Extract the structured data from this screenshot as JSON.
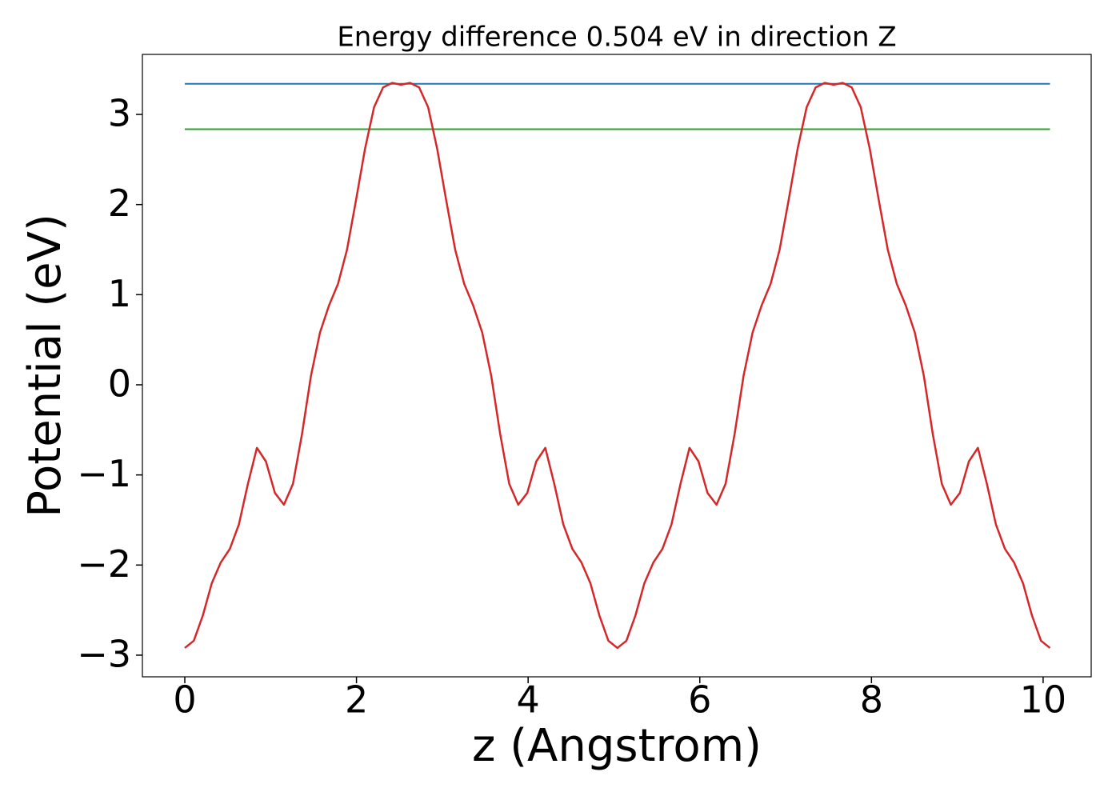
{
  "chart_data": {
    "type": "line",
    "title": "Energy difference 0.504 eV in direction Z",
    "xlabel": "z (Angstrom)",
    "ylabel": "Potential (eV)",
    "xlim": [
      -0.494,
      10.56
    ],
    "ylim": [
      -3.24,
      3.666
    ],
    "xticks": [
      0,
      2,
      4,
      6,
      8,
      10
    ],
    "yticks": [
      {
        "value": -3,
        "label": "−3"
      },
      {
        "value": -2,
        "label": "−2"
      },
      {
        "value": -1,
        "label": "−1"
      },
      0,
      1,
      2,
      3
    ],
    "series": [
      {
        "color": "#1f77b4",
        "x": [
          0,
          10.08
        ],
        "values": [
          3.34,
          3.34
        ]
      },
      {
        "color": "#2ca02c",
        "x": [
          0,
          10.08
        ],
        "values": [
          2.836,
          2.836
        ]
      },
      {
        "color": "#d62728",
        "x": [
          0,
          0.105,
          0.21,
          0.315,
          0.42,
          0.525,
          0.63,
          0.735,
          0.84,
          0.945,
          1.05,
          1.155,
          1.26,
          1.365,
          1.47,
          1.575,
          1.68,
          1.785,
          1.89,
          1.995,
          2.1,
          2.205,
          2.31,
          2.415,
          2.52,
          2.625,
          2.73,
          2.835,
          2.94,
          3.045,
          3.15,
          3.255,
          3.36,
          3.465,
          3.57,
          3.675,
          3.78,
          3.885,
          3.99,
          4.095,
          4.2,
          4.305,
          4.41,
          4.515,
          4.62,
          4.725,
          4.83,
          4.935,
          5.04,
          5.145,
          5.25,
          5.355,
          5.46,
          5.565,
          5.67,
          5.775,
          5.88,
          5.985,
          6.09,
          6.195,
          6.3,
          6.405,
          6.51,
          6.615,
          6.72,
          6.825,
          6.93,
          7.035,
          7.14,
          7.245,
          7.35,
          7.455,
          7.56,
          7.665,
          7.77,
          7.875,
          7.98,
          8.085,
          8.19,
          8.295,
          8.4,
          8.505,
          8.61,
          8.715,
          8.82,
          8.925,
          9.03,
          9.135,
          9.24,
          9.345,
          9.45,
          9.555,
          9.66,
          9.765,
          9.87,
          9.975,
          10.08
        ],
        "values": [
          -2.92,
          -2.84,
          -2.56,
          -2.2,
          -1.97,
          -1.82,
          -1.55,
          -1.1,
          -0.7,
          -0.85,
          -1.2,
          -1.33,
          -1.1,
          -0.55,
          0.1,
          0.58,
          0.88,
          1.12,
          1.5,
          2.05,
          2.62,
          3.08,
          3.3,
          3.35,
          3.33,
          3.35,
          3.3,
          3.08,
          2.62,
          2.05,
          1.5,
          1.12,
          0.88,
          0.58,
          0.1,
          -0.55,
          -1.1,
          -1.33,
          -1.2,
          -0.85,
          -0.7,
          -1.1,
          -1.55,
          -1.82,
          -1.97,
          -2.2,
          -2.56,
          -2.84,
          -2.92,
          -2.84,
          -2.56,
          -2.2,
          -1.97,
          -1.82,
          -1.55,
          -1.1,
          -0.7,
          -0.85,
          -1.2,
          -1.33,
          -1.1,
          -0.55,
          0.1,
          0.58,
          0.88,
          1.12,
          1.5,
          2.05,
          2.62,
          3.08,
          3.3,
          3.35,
          3.33,
          3.35,
          3.3,
          3.08,
          2.62,
          2.05,
          1.5,
          1.12,
          0.88,
          0.58,
          0.1,
          -0.55,
          -1.1,
          -1.33,
          -1.2,
          -0.85,
          -0.7,
          -1.1,
          -1.55,
          -1.82,
          -1.97,
          -2.2,
          -2.56,
          -2.84,
          -2.92
        ]
      }
    ]
  }
}
